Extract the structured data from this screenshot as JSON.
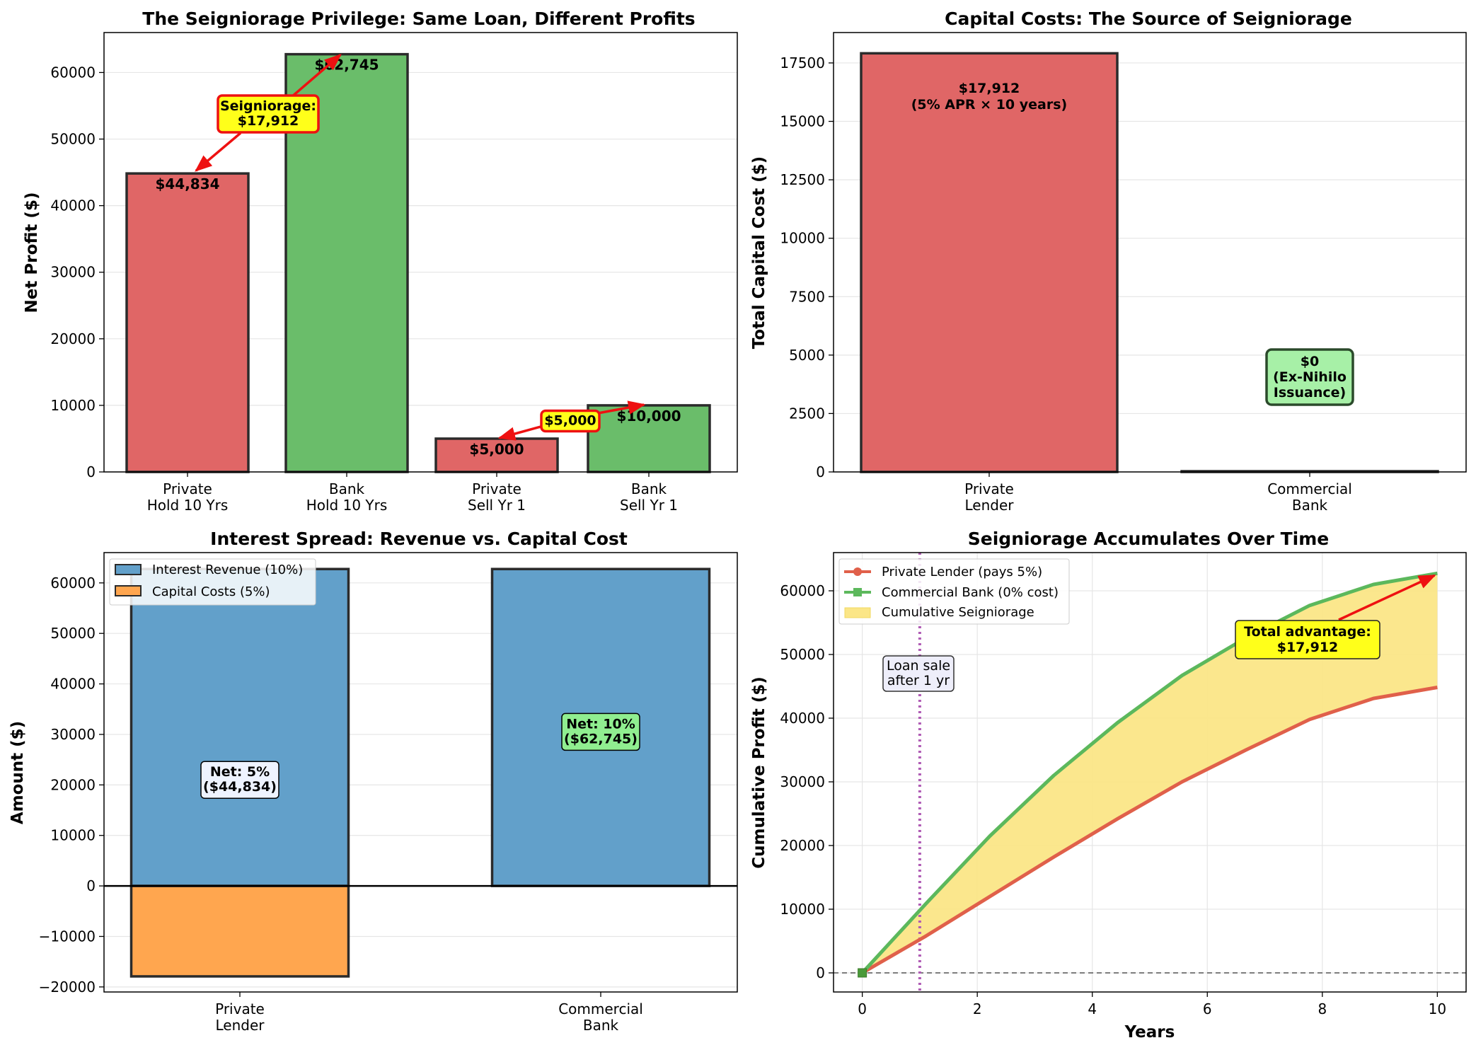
{
  "colors": {
    "private": "#e06666",
    "bank": "#6abd6a",
    "revenue": "#62a0ca",
    "cost": "#ffa64f",
    "private_line": "#e0604a",
    "bank_line": "#5cb85c",
    "seigniorage_fill": "#fbe687",
    "highlight": "#ffff1a",
    "arrow": "#ee1111",
    "edge": "#2b2b2b",
    "dotted": "#b05cb5"
  },
  "chart_data": [
    {
      "type": "bar",
      "title": "The Seigniorage Privilege: Same Loan, Different Profits",
      "xlabel": "",
      "ylabel": "Net Profit ($)",
      "ylim": [
        0,
        66000
      ],
      "yticks": [
        "0",
        "10000",
        "20000",
        "30000",
        "40000",
        "50000",
        "60000"
      ],
      "ytick_values": [
        0,
        10000,
        20000,
        30000,
        40000,
        50000,
        60000
      ],
      "categories": [
        [
          "Private",
          "Hold 10 Yrs"
        ],
        [
          "Bank",
          "Hold 10 Yrs"
        ],
        [
          "Private",
          "Sell Yr 1"
        ],
        [
          "Bank",
          "Sell Yr 1"
        ]
      ],
      "values": [
        44834,
        62745,
        5000,
        10000
      ],
      "value_labels": [
        "$44,834",
        "$62,745",
        "$5,000",
        "$10,000"
      ],
      "bar_colors": [
        "private",
        "bank",
        "private",
        "bank"
      ],
      "annotations": [
        {
          "lines": [
            "Seigniorage:",
            "$17,912"
          ],
          "from_index": 1,
          "to_index": 0
        },
        {
          "lines": [
            "$5,000"
          ],
          "from_index": 3,
          "to_index": 2
        }
      ]
    },
    {
      "type": "bar",
      "title": "Capital Costs: The Source of Seigniorage",
      "xlabel": "",
      "ylabel": "Total Capital Cost ($)",
      "ylim": [
        0,
        18800
      ],
      "yticks": [
        "0",
        "2500",
        "5000",
        "7500",
        "10000",
        "12500",
        "15000",
        "17500"
      ],
      "ytick_values": [
        0,
        2500,
        5000,
        7500,
        10000,
        12500,
        15000,
        17500
      ],
      "categories": [
        [
          "Private",
          "Lender"
        ],
        [
          "Commercial",
          "Bank"
        ]
      ],
      "values": [
        17912,
        0
      ],
      "value_labels": [
        [
          "$17,912",
          "(5% APR × 10 years)"
        ],
        [
          "$0",
          "(Ex-Nihilo",
          "Issuance)"
        ]
      ],
      "bar_colors": [
        "private",
        "bank"
      ]
    },
    {
      "type": "bar",
      "title": "Interest Spread: Revenue vs. Capital Cost",
      "xlabel": "",
      "ylabel": "Amount ($)",
      "ylim": [
        -21000,
        66000
      ],
      "yticks": [
        "−20000",
        "−10000",
        "0",
        "10000",
        "20000",
        "30000",
        "40000",
        "50000",
        "60000"
      ],
      "ytick_values": [
        -20000,
        -10000,
        0,
        10000,
        20000,
        30000,
        40000,
        50000,
        60000
      ],
      "categories": [
        [
          "Private",
          "Lender"
        ],
        [
          "Commercial",
          "Bank"
        ]
      ],
      "series": [
        {
          "name": "Interest Revenue (10%)",
          "values": [
            62745,
            62745
          ],
          "color": "revenue"
        },
        {
          "name": "Capital Costs (5%)",
          "values": [
            -17912,
            0
          ],
          "color": "cost"
        }
      ],
      "net_labels": [
        [
          "Net: 5%",
          "($44,834)"
        ],
        [
          "Net: 10%",
          "($62,745)"
        ]
      ],
      "net_values": [
        21000,
        30500
      ]
    },
    {
      "type": "line",
      "title": "Seigniorage Accumulates Over Time",
      "xlabel": "Years",
      "ylabel": "Cumulative Profit ($)",
      "xlim": [
        -0.5,
        10.5
      ],
      "ylim": [
        -3000,
        66000
      ],
      "xticks": [
        "0",
        "2",
        "4",
        "6",
        "8",
        "10"
      ],
      "xtick_values": [
        0,
        2,
        4,
        6,
        8,
        10
      ],
      "yticks": [
        "0",
        "10000",
        "20000",
        "30000",
        "40000",
        "50000",
        "60000"
      ],
      "ytick_values": [
        0,
        10000,
        20000,
        30000,
        40000,
        50000,
        60000
      ],
      "x": [
        0,
        1.11,
        2.22,
        3.33,
        4.44,
        5.56,
        6.67,
        7.78,
        8.89,
        10
      ],
      "series": [
        {
          "name": "Private Lender (pays 5%)",
          "values": [
            0,
            5800,
            12000,
            18200,
            24200,
            30000,
            35000,
            39800,
            43100,
            44834
          ],
          "color": "private_line",
          "marker": "circle"
        },
        {
          "name": "Commercial Bank (0% cost)",
          "values": [
            0,
            10900,
            21500,
            31000,
            39300,
            46700,
            52600,
            57700,
            61000,
            62745
          ],
          "color": "bank_line",
          "marker": "square"
        }
      ],
      "fill_label": "Cumulative Seigniorage",
      "annotations": [
        {
          "lines": [
            "Loan sale",
            "after 1 yr"
          ],
          "x": 1
        },
        {
          "lines": [
            "Total advantage:",
            "$17,912"
          ],
          "x": 10,
          "y": 62745
        }
      ]
    }
  ]
}
